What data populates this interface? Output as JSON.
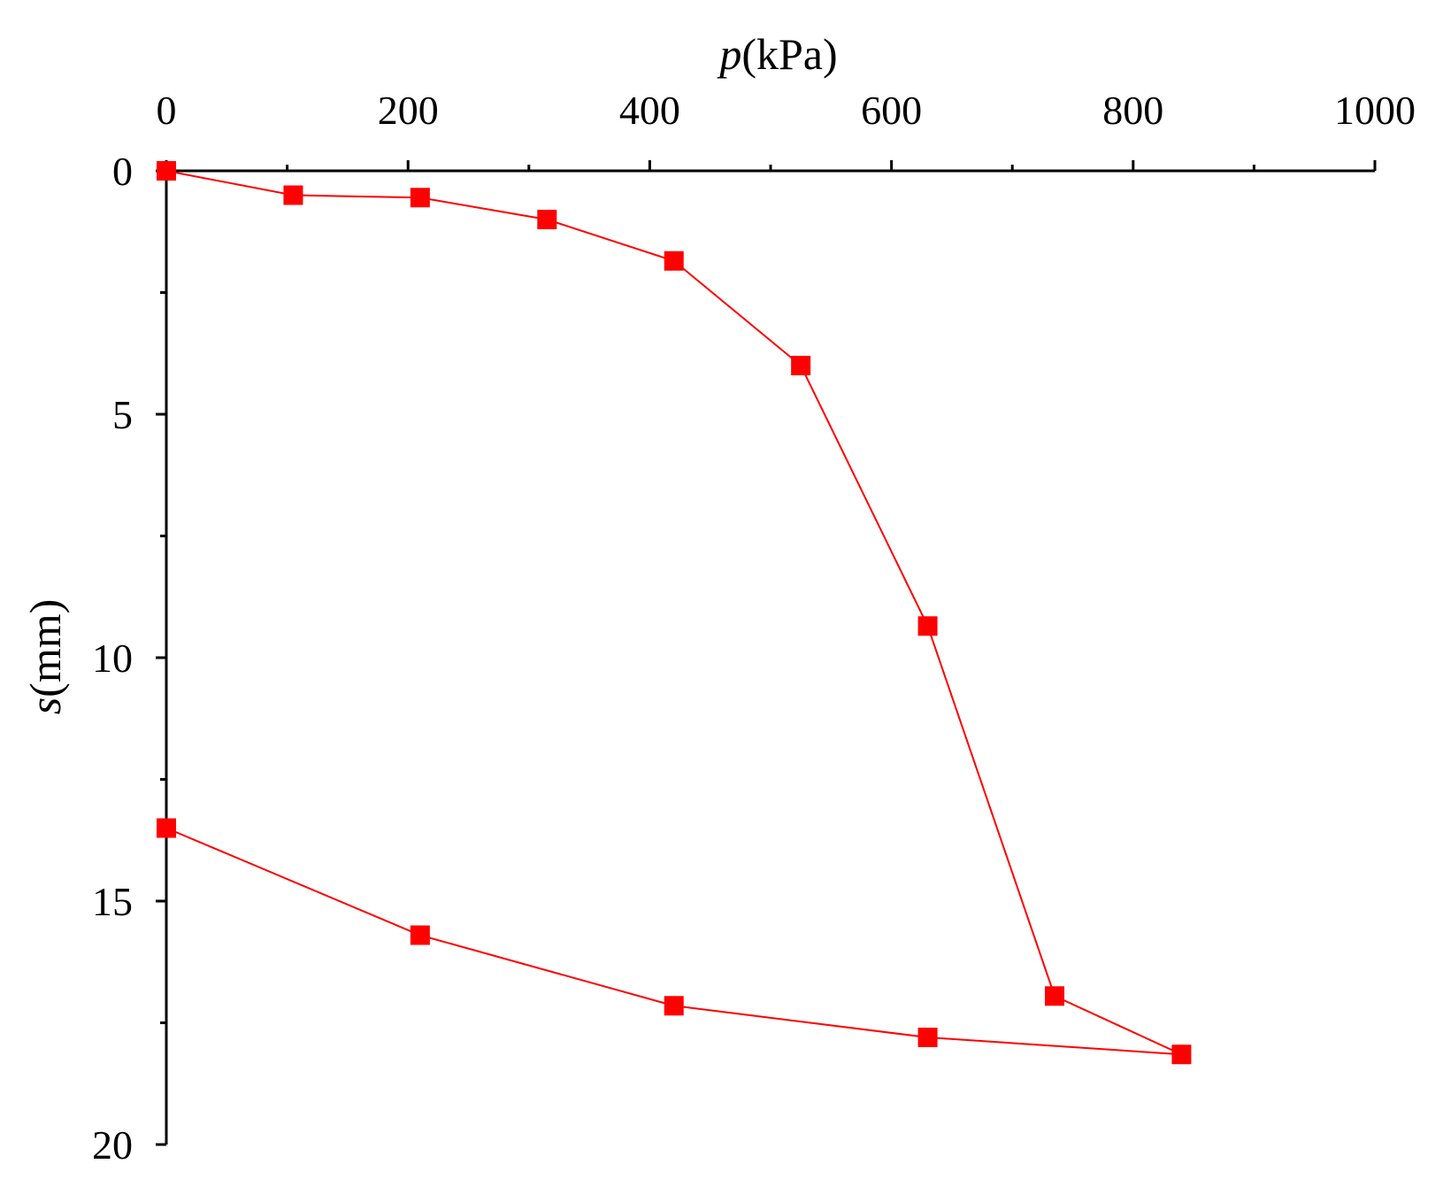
{
  "chart_data": {
    "type": "line",
    "xlabel": {
      "var": "p",
      "unit": "(kPa)"
    },
    "ylabel": {
      "var": "s",
      "unit": "(mm)"
    },
    "x_axis_position": "top",
    "y_inverted": true,
    "xlim": [
      0,
      1000
    ],
    "ylim": [
      0,
      20
    ],
    "x_ticks": [
      0,
      200,
      400,
      600,
      800,
      1000
    ],
    "x_tick_labels": [
      "0",
      "200",
      "400",
      "600",
      "800",
      "1000"
    ],
    "x_minor_ticks": [
      100,
      300,
      500,
      700,
      900
    ],
    "y_ticks": [
      0,
      5,
      10,
      15,
      20
    ],
    "y_tick_labels": [
      "0",
      "5",
      "10",
      "15",
      "20"
    ],
    "y_minor_ticks": [
      2.5,
      7.5,
      12.5,
      17.5
    ],
    "grid": false,
    "series": [
      {
        "color": "#ff0000",
        "marker": "square",
        "points": [
          [
            0,
            0
          ],
          [
            105,
            0.5
          ],
          [
            210,
            0.55
          ],
          [
            315,
            1.0
          ],
          [
            420,
            1.85
          ],
          [
            525,
            4.0
          ],
          [
            630,
            9.35
          ],
          [
            735,
            16.95
          ],
          [
            840,
            18.15
          ],
          [
            630,
            17.8
          ],
          [
            420,
            17.15
          ],
          [
            210,
            15.7
          ],
          [
            0,
            13.5
          ]
        ]
      }
    ]
  }
}
